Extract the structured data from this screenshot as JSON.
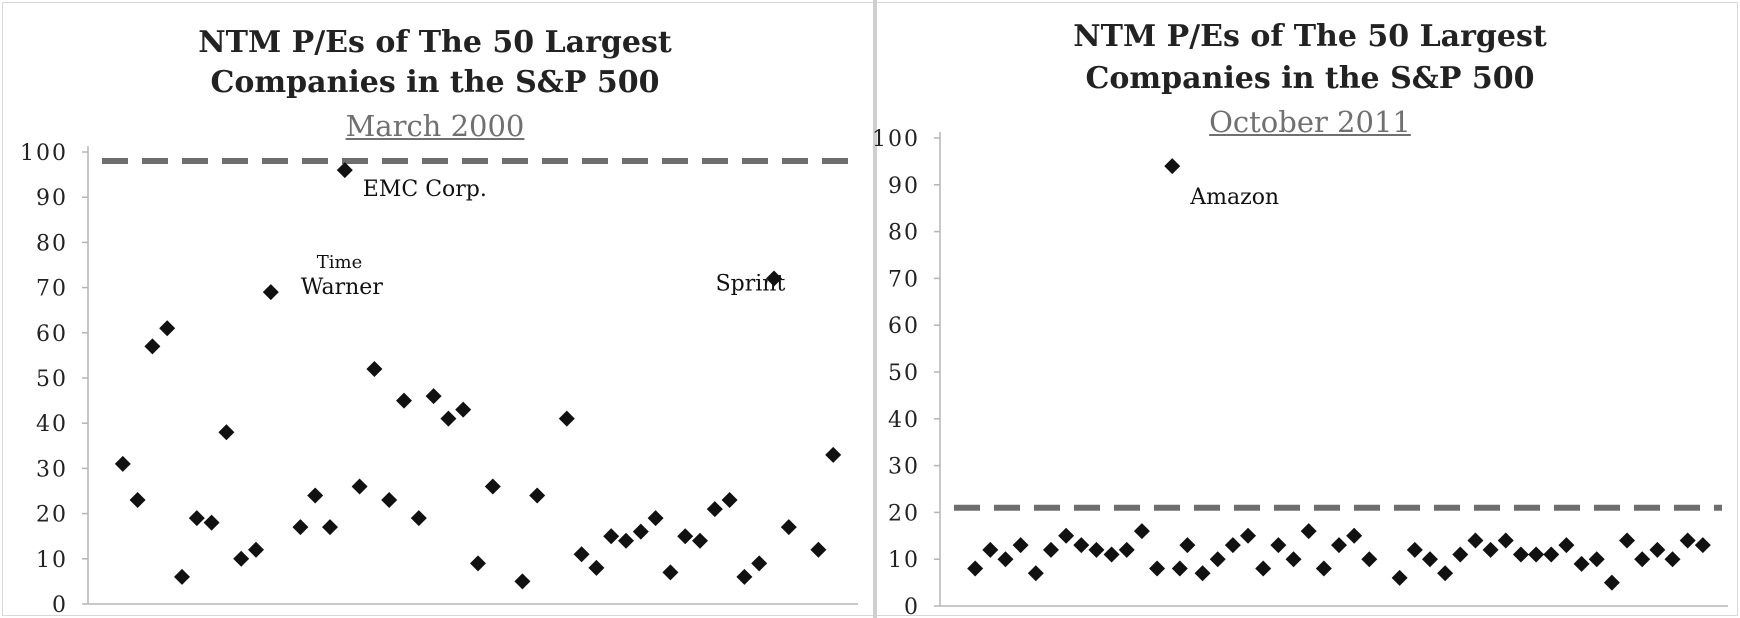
{
  "charts_meta": {
    "title_line1": "NTM P/Es of The 50 Largest",
    "title_line2": "Companies in the S&P 500"
  },
  "chart_data": [
    {
      "type": "scatter",
      "title": "NTM P/Es of The 50 Largest Companies in the S&P 500",
      "subtitle": "March 2000",
      "xlabel": "",
      "ylabel": "",
      "ylim": [
        0,
        100
      ],
      "yticks": [
        "0",
        "10",
        "20",
        "30",
        "40",
        "50",
        "60",
        "70",
        "80",
        "90",
        "100"
      ],
      "average_line": 98,
      "grid": false,
      "marker_color": "#111111",
      "average_line_color": "#6e6e6e",
      "annotations": [
        {
          "text": "EMC Corp.",
          "x": 16,
          "y": 96
        },
        {
          "text": "Time Warner",
          "x": 11,
          "y": 69
        },
        {
          "text": "Sprint",
          "x": 47,
          "y": 72
        }
      ],
      "points": [
        {
          "x": 1,
          "y": 31
        },
        {
          "x": 2,
          "y": 23
        },
        {
          "x": 3,
          "y": 57
        },
        {
          "x": 4,
          "y": 61
        },
        {
          "x": 5,
          "y": 6
        },
        {
          "x": 6,
          "y": 19
        },
        {
          "x": 7,
          "y": 18
        },
        {
          "x": 8,
          "y": 38
        },
        {
          "x": 9,
          "y": 10
        },
        {
          "x": 10,
          "y": 12
        },
        {
          "x": 11,
          "y": 69
        },
        {
          "x": 13,
          "y": 17
        },
        {
          "x": 14,
          "y": 24
        },
        {
          "x": 15,
          "y": 17
        },
        {
          "x": 16,
          "y": 96
        },
        {
          "x": 17,
          "y": 26
        },
        {
          "x": 18,
          "y": 52
        },
        {
          "x": 19,
          "y": 23
        },
        {
          "x": 20,
          "y": 45
        },
        {
          "x": 21,
          "y": 19
        },
        {
          "x": 22,
          "y": 46
        },
        {
          "x": 23,
          "y": 41
        },
        {
          "x": 24,
          "y": 43
        },
        {
          "x": 25,
          "y": 9
        },
        {
          "x": 26,
          "y": 26
        },
        {
          "x": 28,
          "y": 5
        },
        {
          "x": 29,
          "y": 24
        },
        {
          "x": 31,
          "y": 41
        },
        {
          "x": 32,
          "y": 11
        },
        {
          "x": 33,
          "y": 8
        },
        {
          "x": 34,
          "y": 15
        },
        {
          "x": 35,
          "y": 14
        },
        {
          "x": 36,
          "y": 16
        },
        {
          "x": 37,
          "y": 19
        },
        {
          "x": 38,
          "y": 7
        },
        {
          "x": 39,
          "y": 15
        },
        {
          "x": 40,
          "y": 14
        },
        {
          "x": 41,
          "y": 21
        },
        {
          "x": 42,
          "y": 23
        },
        {
          "x": 43,
          "y": 6
        },
        {
          "x": 44,
          "y": 9
        },
        {
          "x": 45,
          "y": 72
        },
        {
          "x": 46,
          "y": 17
        },
        {
          "x": 48,
          "y": 12
        },
        {
          "x": 49,
          "y": 33
        }
      ],
      "xlim": [
        0,
        50
      ]
    },
    {
      "type": "scatter",
      "title": "NTM P/Es of The 50 Largest Companies in the S&P 500",
      "subtitle": "October 2011",
      "xlabel": "",
      "ylabel": "",
      "ylim": [
        0,
        100
      ],
      "yticks": [
        "0",
        "10",
        "20",
        "30",
        "40",
        "50",
        "60",
        "70",
        "80",
        "90",
        "100"
      ],
      "average_line": 21,
      "grid": false,
      "marker_color": "#111111",
      "average_line_color": "#6e6e6e",
      "annotations": [
        {
          "text": "Amazon",
          "x": 14,
          "y": 94
        }
      ],
      "points": [
        {
          "x": 1,
          "y": 8
        },
        {
          "x": 2,
          "y": 12
        },
        {
          "x": 3,
          "y": 10
        },
        {
          "x": 4,
          "y": 13
        },
        {
          "x": 5,
          "y": 7
        },
        {
          "x": 6,
          "y": 12
        },
        {
          "x": 7,
          "y": 15
        },
        {
          "x": 8,
          "y": 13
        },
        {
          "x": 9,
          "y": 12
        },
        {
          "x": 10,
          "y": 11
        },
        {
          "x": 11,
          "y": 12
        },
        {
          "x": 12,
          "y": 16
        },
        {
          "x": 13,
          "y": 8
        },
        {
          "x": 14,
          "y": 94
        },
        {
          "x": 14.5,
          "y": 8
        },
        {
          "x": 15,
          "y": 13
        },
        {
          "x": 16,
          "y": 7
        },
        {
          "x": 17,
          "y": 10
        },
        {
          "x": 18,
          "y": 13
        },
        {
          "x": 19,
          "y": 15
        },
        {
          "x": 20,
          "y": 8
        },
        {
          "x": 21,
          "y": 13
        },
        {
          "x": 22,
          "y": 10
        },
        {
          "x": 23,
          "y": 16
        },
        {
          "x": 24,
          "y": 8
        },
        {
          "x": 25,
          "y": 13
        },
        {
          "x": 26,
          "y": 15
        },
        {
          "x": 27,
          "y": 10
        },
        {
          "x": 29,
          "y": 6
        },
        {
          "x": 30,
          "y": 12
        },
        {
          "x": 31,
          "y": 10
        },
        {
          "x": 32,
          "y": 7
        },
        {
          "x": 33,
          "y": 11
        },
        {
          "x": 34,
          "y": 14
        },
        {
          "x": 35,
          "y": 12
        },
        {
          "x": 36,
          "y": 14
        },
        {
          "x": 37,
          "y": 11
        },
        {
          "x": 38,
          "y": 11
        },
        {
          "x": 39,
          "y": 11
        },
        {
          "x": 40,
          "y": 13
        },
        {
          "x": 41,
          "y": 9
        },
        {
          "x": 42,
          "y": 10
        },
        {
          "x": 43,
          "y": 5
        },
        {
          "x": 44,
          "y": 14
        },
        {
          "x": 45,
          "y": 10
        },
        {
          "x": 46,
          "y": 12
        },
        {
          "x": 47,
          "y": 10
        },
        {
          "x": 48,
          "y": 14
        },
        {
          "x": 49,
          "y": 13
        }
      ],
      "xlim": [
        0,
        50
      ]
    }
  ]
}
